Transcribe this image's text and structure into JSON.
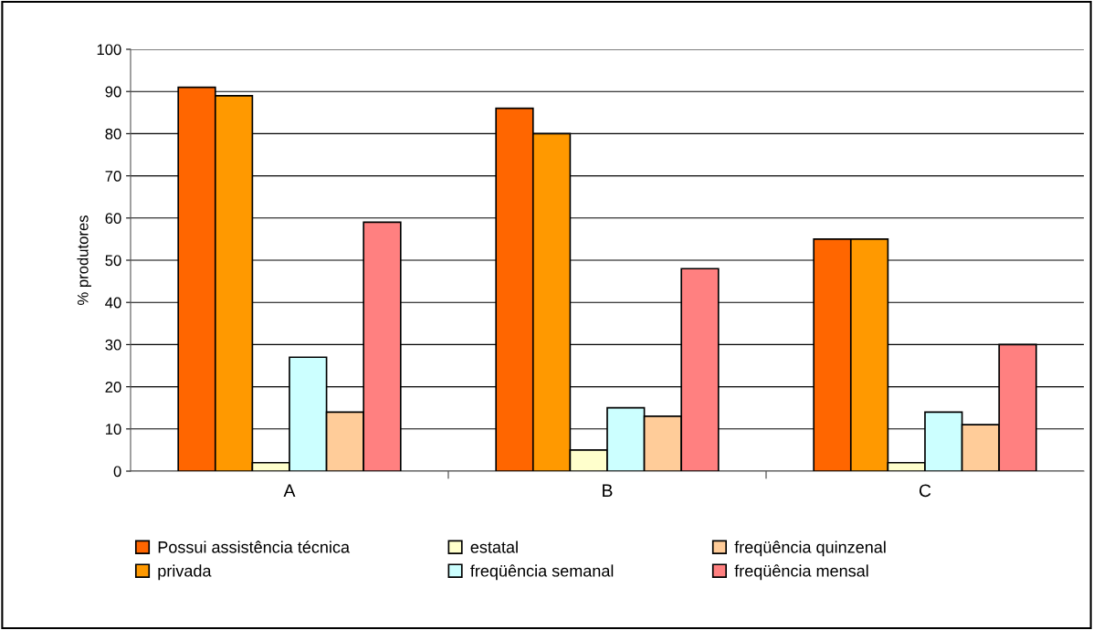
{
  "chart_data": {
    "type": "bar",
    "ylabel": "% produtores",
    "categories": [
      "A",
      "B",
      "C"
    ],
    "series": [
      {
        "name": "Possui assistência técnica",
        "color": "#ff6600",
        "values": [
          91,
          86,
          55
        ]
      },
      {
        "name": "privada",
        "color": "#ff9900",
        "values": [
          89,
          80,
          55
        ]
      },
      {
        "name": "estatal",
        "color": "#ffffcc",
        "values": [
          2,
          5,
          2
        ]
      },
      {
        "name": "freqüência semanal",
        "color": "#ccffff",
        "values": [
          27,
          15,
          14
        ]
      },
      {
        "name": "freqüência quinzenal",
        "color": "#ffcc99",
        "values": [
          14,
          13,
          11
        ]
      },
      {
        "name": "freqüência mensal",
        "color": "#ff8080",
        "values": [
          59,
          48,
          30
        ]
      }
    ],
    "ylim": [
      0,
      100
    ],
    "yticks": [
      0,
      10,
      20,
      30,
      40,
      50,
      60,
      70,
      80,
      90,
      100
    ],
    "grid": "y",
    "legend": "bottom"
  }
}
